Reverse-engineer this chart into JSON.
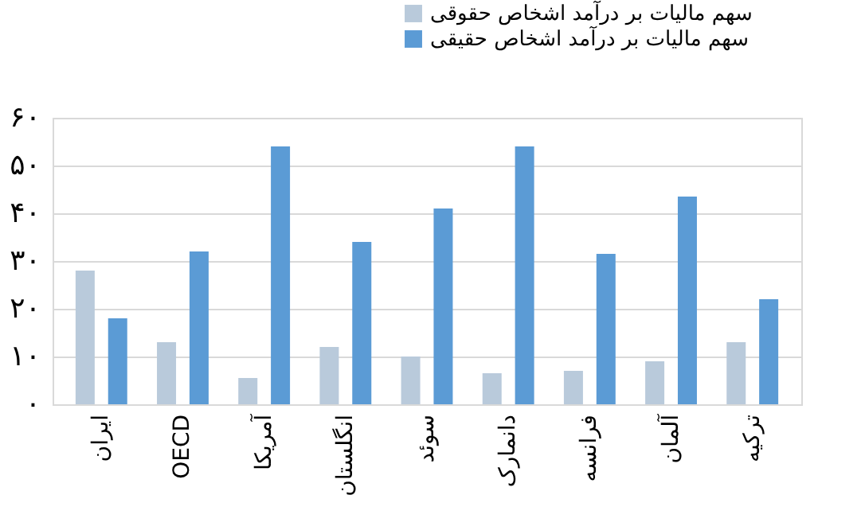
{
  "chart_data": {
    "type": "bar",
    "categories": [
      "ایران",
      "OECD",
      "آمریکا",
      "انگلستان",
      "سوئد",
      "دانمارک",
      "فرانسه",
      "آلمان",
      "ترکیه"
    ],
    "series": [
      {
        "name": "سهم مالیات بر درآمد اشخاص حقوقی",
        "color": "#b9cadb",
        "values": [
          28,
          13,
          5.5,
          12,
          10,
          6.5,
          7,
          9,
          13
        ]
      },
      {
        "name": "سهم مالیات بر درآمد اشخاص حقیقی",
        "color": "#5b9bd5",
        "values": [
          18,
          32,
          54,
          34,
          41,
          54,
          31.5,
          43.5,
          22
        ]
      }
    ],
    "ylim": [
      0,
      60
    ],
    "yticks": [
      {
        "value": 0,
        "label": "۰"
      },
      {
        "value": 10,
        "label": "۱۰"
      },
      {
        "value": 20,
        "label": "۲۰"
      },
      {
        "value": 30,
        "label": "۳۰"
      },
      {
        "value": 40,
        "label": "۴۰"
      },
      {
        "value": 50,
        "label": "۵۰"
      },
      {
        "value": 60,
        "label": "۶۰"
      }
    ],
    "grid": "y",
    "legend": "top right"
  }
}
